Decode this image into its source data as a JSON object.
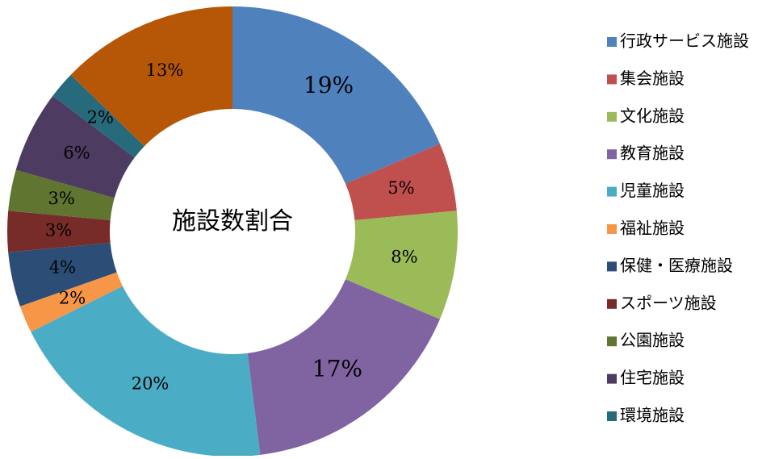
{
  "chart_data": {
    "type": "donut",
    "title": "施設数割合",
    "categories": [
      "行政サービス施設",
      "集会施設",
      "文化施設",
      "教育施設",
      "児童施設",
      "福祉施設",
      "保健・医療施設",
      "スポーツ施設",
      "公園施設",
      "住宅施設",
      "環境施設",
      null
    ],
    "values": [
      19,
      5,
      8,
      17,
      20,
      2,
      4,
      3,
      3,
      6,
      2,
      13
    ],
    "value_labels": [
      "19%",
      "5%",
      "8%",
      "17%",
      "20%",
      "2%",
      "4%",
      "3%",
      "3%",
      "6%",
      "2%",
      "13%"
    ],
    "colors": [
      "#4f81bd",
      "#c0504d",
      "#9bbb59",
      "#8064a2",
      "#4bacc6",
      "#f79646",
      "#2c4d75",
      "#772c2a",
      "#5f7530",
      "#4d3b62",
      "#276a7c",
      "#b65708"
    ],
    "legend": "right"
  }
}
